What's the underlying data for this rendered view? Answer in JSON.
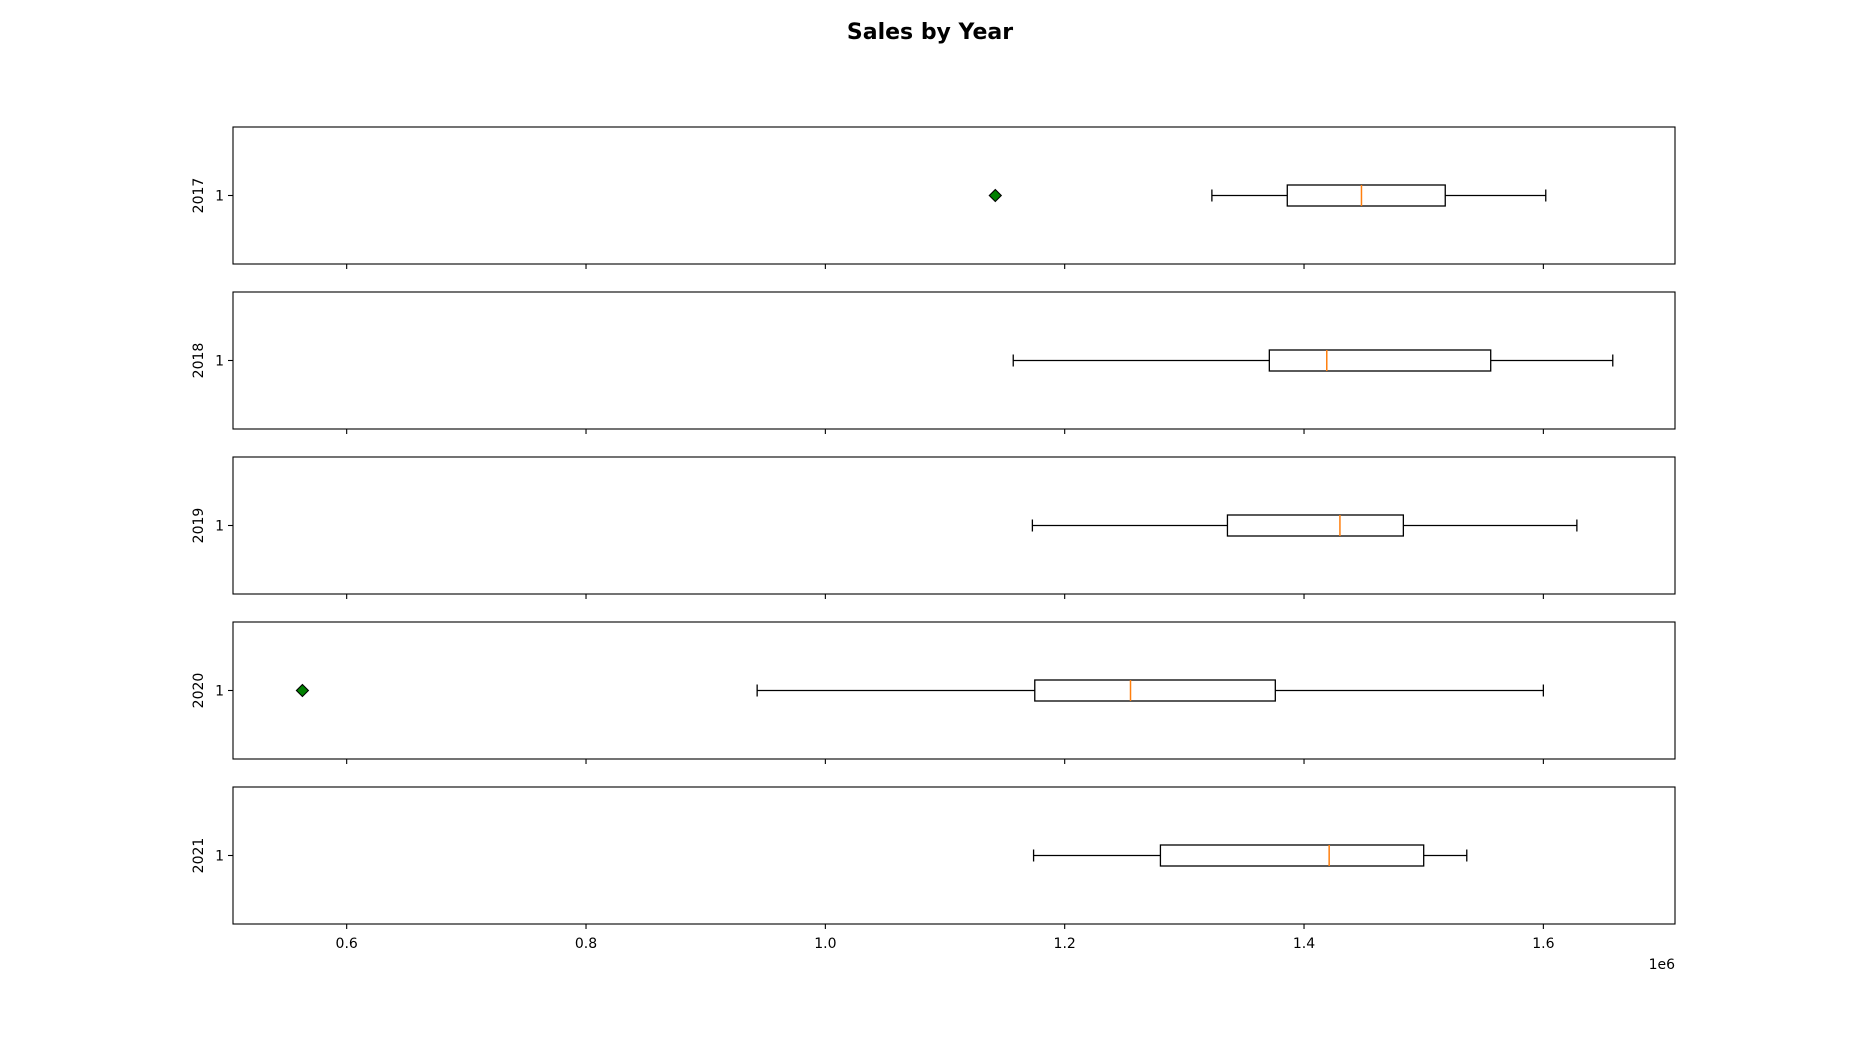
{
  "chart_data": {
    "type": "boxplot",
    "orientation": "horizontal",
    "title": "Sales by Year",
    "x_range": [
      505000,
      1710000
    ],
    "x_ticks": [
      {
        "value": 600000,
        "label": "0.6"
      },
      {
        "value": 800000,
        "label": "0.8"
      },
      {
        "value": 1000000,
        "label": "1.0"
      },
      {
        "value": 1200000,
        "label": "1.2"
      },
      {
        "value": 1400000,
        "label": "1.4"
      },
      {
        "value": 1600000,
        "label": "1.6"
      }
    ],
    "x_offset_label": "1e6",
    "y_tick_label": "1",
    "colors": {
      "median": "#ff7f0e",
      "outlier_fill": "#008000",
      "box": "#000000"
    },
    "series": [
      {
        "name": "2017",
        "whisker_low": 1323000,
        "q1": 1386000,
        "median": 1448000,
        "q3": 1518000,
        "whisker_high": 1602000,
        "outliers": [
          1142000
        ]
      },
      {
        "name": "2018",
        "whisker_low": 1157000,
        "q1": 1371000,
        "median": 1419000,
        "q3": 1556000,
        "whisker_high": 1658000,
        "outliers": []
      },
      {
        "name": "2019",
        "whisker_low": 1173000,
        "q1": 1336000,
        "median": 1430000,
        "q3": 1483000,
        "whisker_high": 1628000,
        "outliers": []
      },
      {
        "name": "2020",
        "whisker_low": 943000,
        "q1": 1175000,
        "median": 1255000,
        "q3": 1376000,
        "whisker_high": 1600000,
        "outliers": [
          563000
        ]
      },
      {
        "name": "2021",
        "whisker_low": 1174000,
        "q1": 1280000,
        "median": 1421000,
        "q3": 1500000,
        "whisker_high": 1536000,
        "outliers": []
      }
    ]
  }
}
